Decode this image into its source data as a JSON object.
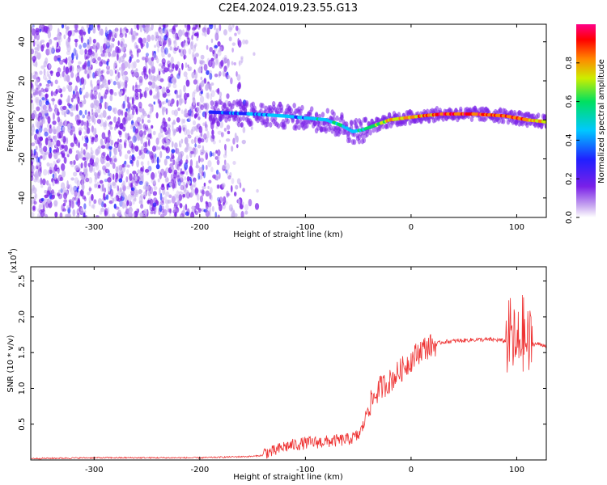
{
  "title": "C2E4.2024.019.23.55.G13",
  "colors": {
    "accent": "#ee3333",
    "cmap": [
      "#c8b0f0",
      "#7a20e8",
      "#2020ff",
      "#00c8ff",
      "#00e060",
      "#ccee00",
      "#ff8800",
      "#ff0000",
      "#ff0088"
    ]
  },
  "chart_data": [
    {
      "type": "heatmap",
      "xlabel": "Height of straight line (km)",
      "ylabel": "Frequency (Hz)",
      "xlim": [
        -360,
        128
      ],
      "ylim": [
        -50,
        49
      ],
      "xticks": [
        -300,
        -200,
        -100,
        0,
        100
      ],
      "yticks": [
        -40,
        -20,
        0,
        20,
        40
      ],
      "colorbar": {
        "label": "Normalized spectral amplitude",
        "range": [
          0,
          1
        ],
        "ticks": [
          "0.0",
          "0.2",
          "0.4",
          "0.6",
          "0.8"
        ]
      },
      "ridge": {
        "x": [
          -190,
          -150,
          -120,
          -100,
          -80,
          -65,
          -55,
          -45,
          -35,
          -20,
          -5,
          10,
          30,
          60,
          90,
          110,
          128
        ],
        "freq": [
          4,
          3,
          2,
          1,
          0,
          -3,
          -6,
          -5,
          -3,
          0,
          1,
          2,
          3,
          3,
          2,
          0,
          -1
        ],
        "amplitude": [
          0.3,
          0.3,
          0.4,
          0.35,
          0.45,
          0.5,
          0.4,
          0.5,
          0.55,
          0.7,
          0.75,
          0.8,
          0.9,
          0.9,
          0.85,
          0.75,
          0.7
        ]
      }
    },
    {
      "type": "line",
      "xlabel": "Height of straight line (km)",
      "ylabel": "SNR (10 * v/v)",
      "yscale_label": "(x10",
      "yscale_exp": "4",
      "xlim": [
        -360,
        128
      ],
      "ylim": [
        0,
        2.7
      ],
      "xticks": [
        -300,
        -200,
        -100,
        0,
        100
      ],
      "yticks": [
        "0.5",
        "1.0",
        "1.5",
        "2.0",
        "2.5"
      ],
      "series": [
        {
          "x": [
            -360,
            -300,
            -250,
            -200,
            -150,
            -130,
            -120,
            -100,
            -80,
            -60,
            -50,
            -45,
            -40,
            -30,
            -20,
            -10,
            0,
            10,
            20,
            30,
            40,
            50,
            60,
            70,
            80,
            90,
            95,
            100,
            105,
            110,
            115,
            120,
            128
          ],
          "values": [
            0.02,
            0.03,
            0.03,
            0.03,
            0.05,
            0.08,
            0.15,
            0.2,
            0.22,
            0.25,
            0.3,
            0.45,
            0.75,
            1.0,
            1.1,
            1.25,
            1.4,
            1.55,
            1.6,
            1.65,
            1.66,
            1.67,
            1.68,
            1.68,
            1.68,
            1.66,
            1.75,
            1.5,
            1.8,
            1.6,
            1.62,
            1.62,
            1.6
          ]
        }
      ]
    }
  ]
}
